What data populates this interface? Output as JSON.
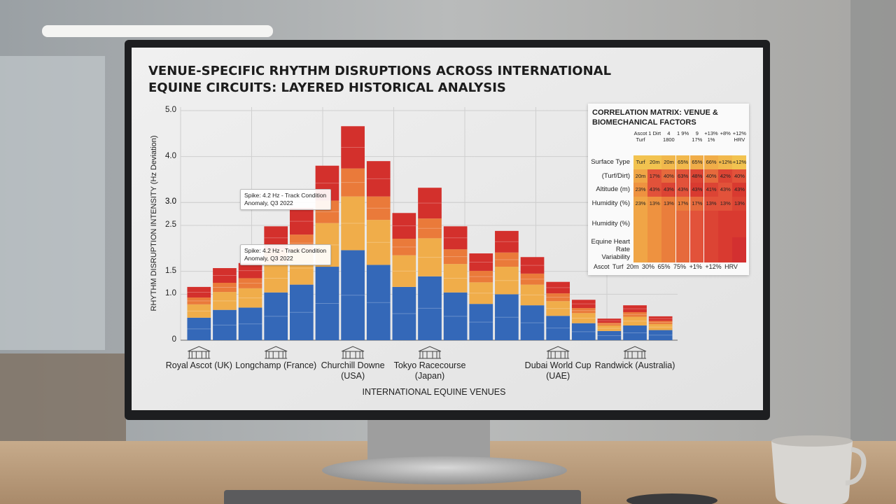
{
  "chart_data": {
    "type": "stacked_bar",
    "title": "VENUE-SPECIFIC RHYTHM DISRUPTIONS ACROSS INTERNATIONAL EQUINE CIRCUITS: LAYERED HISTORICAL ANALYSIS",
    "y_label": "RHYTHM DISRUPTION INTENSITY (Hz Deviation)",
    "x_label": "INTERNATIONAL EQUINE VENUES",
    "categories": [
      "Royal Ascot (UK)",
      null,
      null,
      "Longchamp (France)",
      null,
      null,
      "Churchill Downe (USA)",
      null,
      null,
      "Tokyo Racecourse (Japan)",
      null,
      null,
      null,
      null,
      "Dubai World Cup (UAE)",
      null,
      null,
      "Randwick (Australia)",
      null
    ],
    "series": [
      {
        "color": "#3468b8",
        "values": [
          0.49,
          0.66,
          0.71,
          1.04,
          1.21,
          1.6,
          1.96,
          1.64,
          1.16,
          1.39,
          1.04,
          0.79,
          1.0,
          0.76,
          0.53,
          0.37,
          0.2,
          0.32,
          0.22
        ]
      },
      {
        "color": "#f0ad4a",
        "values": [
          0.29,
          0.39,
          0.42,
          0.62,
          0.72,
          0.95,
          1.17,
          0.98,
          0.69,
          0.83,
          0.62,
          0.47,
          0.6,
          0.45,
          0.32,
          0.22,
          0.12,
          0.19,
          0.13
        ]
      },
      {
        "color": "#ea7a3a",
        "values": [
          0.15,
          0.2,
          0.22,
          0.32,
          0.37,
          0.49,
          0.61,
          0.51,
          0.36,
          0.43,
          0.32,
          0.25,
          0.31,
          0.24,
          0.17,
          0.11,
          0.06,
          0.1,
          0.07
        ]
      },
      {
        "color": "#d3302c",
        "values": [
          0.23,
          0.32,
          0.33,
          0.5,
          0.58,
          0.76,
          0.92,
          0.77,
          0.56,
          0.67,
          0.5,
          0.38,
          0.47,
          0.36,
          0.25,
          0.18,
          0.09,
          0.15,
          0.1
        ]
      }
    ],
    "ylim": [
      0,
      5
    ],
    "yticks": [
      {
        "value": 5,
        "label": "5.0"
      },
      {
        "value": 4,
        "label": "4.0"
      },
      {
        "value": 3,
        "label": "3.0"
      },
      {
        "value": 3,
        "label": "3.0"
      },
      {
        "value": 2.5,
        "label": "2.5"
      },
      {
        "value": 1,
        "label": "1.0"
      },
      {
        "value": 1.5,
        "label": "1.5"
      },
      0
    ],
    "grid": true,
    "annotations": [
      "Spike: 4.2 Hz - Track Condition Anomaly, Q3 2022",
      "Spike: 4.2 Hz - Track Condition Anomaly, Q3 2022"
    ]
  },
  "correlation_matrix": {
    "title": "CORRELATION MATRIX: VENUE & BIOMECHANICAL FACTORS",
    "columns": [
      "Ascot Turf",
      "1 Dirt",
      "4 1800",
      "1 9%",
      "9 17%",
      "+13% 1%",
      "+8%",
      "+12% HRV"
    ],
    "rows": [
      {
        "label": "Surface Type",
        "cells": [
          "Turf",
          "20m",
          "20m",
          "65%",
          "65%",
          "66%",
          "+12%",
          "+12%"
        ],
        "colors": [
          "#f2c350",
          "#f2c350",
          "#f1b84c",
          "#f1b84c",
          "#f0ad48",
          "#f0ad48",
          "#f1b84c",
          "#f2c350"
        ]
      },
      {
        "label": "(Turf/Dirt)",
        "cells": [
          "20m",
          "17%",
          "40%",
          "63%",
          "48%",
          "40%",
          "42%",
          "40%"
        ],
        "colors": [
          "#f0a546",
          "#e2523a",
          "#e66a3c",
          "#e2523a",
          "#dc4434",
          "#e66a3c",
          "#dc4434",
          "#e2523a"
        ]
      },
      {
        "label": "Altitude (m)",
        "cells": [
          "23%",
          "43%",
          "43%",
          "43%",
          "43%",
          "41%",
          "43%",
          "43%"
        ],
        "colors": [
          "#ee9240",
          "#e2523a",
          "#dc4434",
          "#e2523a",
          "#d93a30",
          "#dc4434",
          "#e2523a",
          "#d93a30"
        ]
      },
      {
        "label": "Humidity (%)",
        "cells": [
          "23%",
          "13%",
          "13%",
          "17%",
          "17%",
          "13%",
          "13%",
          "13%"
        ],
        "colors": [
          "#f0a546",
          "#ee9240",
          "#ea7e3c",
          "#ea7e3c",
          "#e66a3c",
          "#e2523a",
          "#e2523a",
          "#dc4434"
        ]
      },
      {
        "label": "Humidity (%)",
        "colors": [
          "#f0a546",
          "#ee9240",
          "#ea7e3c",
          "#e66a3c",
          "#e2523a",
          "#dc4434",
          "#d93a30",
          "#d93a30"
        ]
      },
      {
        "label": "Equine Heart Rate Variability",
        "colors": [
          "#f0a546",
          "#ee9240",
          "#ea7e3c",
          "#e66a3c",
          "#e2523a",
          "#dc4434",
          "#d93a30",
          "#d33030"
        ]
      }
    ],
    "footer": "Ascot Turf 20m 30% 65% 75% +1% +12% HRV"
  }
}
